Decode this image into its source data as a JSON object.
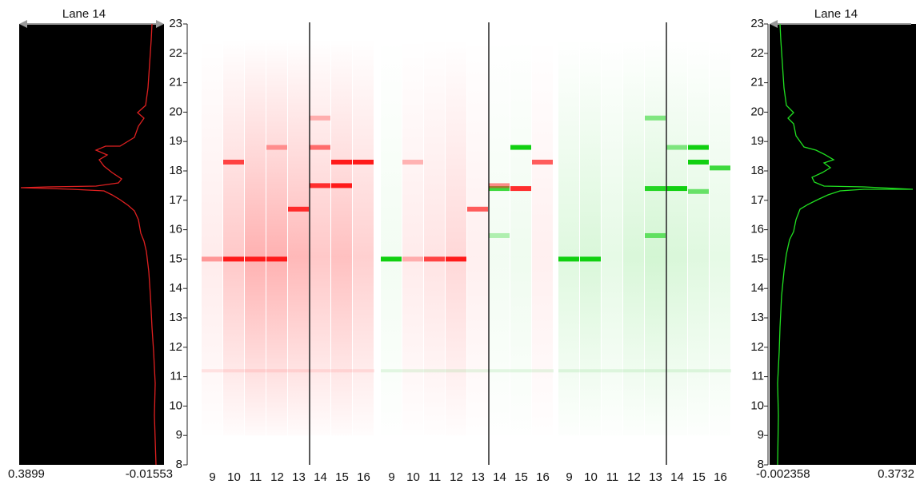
{
  "left_profile": {
    "title": "Lane 14",
    "min_label": "0.3899",
    "max_label": "-0.01553"
  },
  "left_axis": {
    "ticks": [
      23,
      22,
      21,
      20,
      19,
      18,
      17,
      16,
      15,
      14,
      13,
      12,
      11,
      10,
      9,
      8
    ]
  },
  "gel_panels": [
    {
      "lanes": [
        9,
        10,
        11,
        12,
        13,
        14,
        15,
        16
      ]
    },
    {
      "lanes": [
        9,
        10,
        11,
        12,
        13,
        14,
        15,
        16
      ]
    },
    {
      "lanes": [
        9,
        10,
        11,
        12,
        13,
        14,
        15,
        16
      ]
    }
  ],
  "right_axis": {
    "ticks": [
      23,
      22,
      21,
      20,
      19,
      18,
      17,
      16,
      15,
      14,
      13,
      12,
      11,
      10,
      9,
      8
    ]
  },
  "right_profile": {
    "title": "Lane 14",
    "left_label": "-0.002358",
    "right_label": "0.3732"
  }
}
